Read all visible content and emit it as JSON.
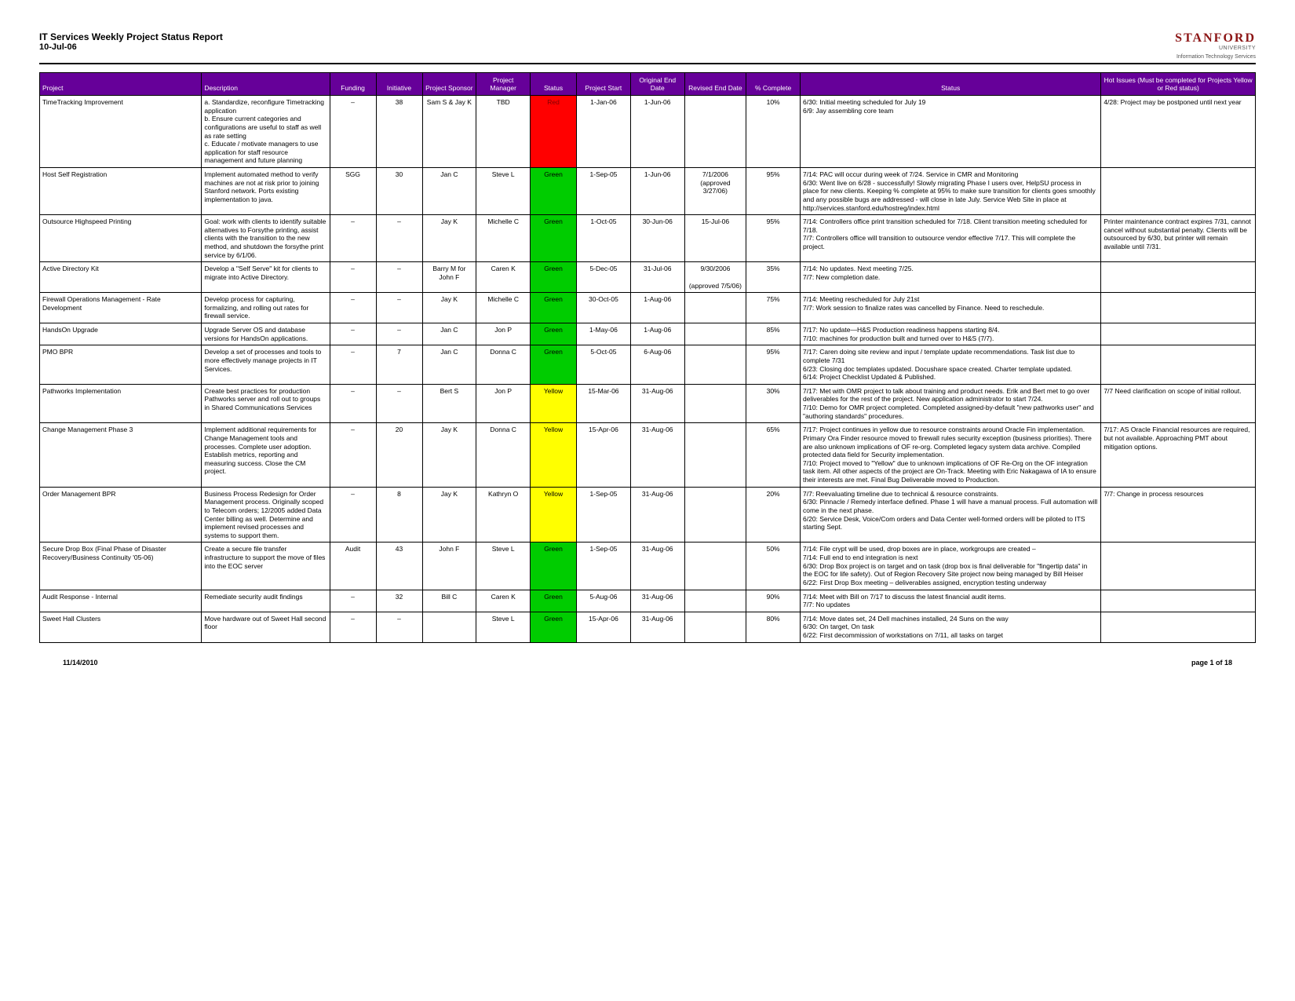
{
  "header": {
    "title": "IT Services Weekly Project Status Report",
    "date": "10-Jul-06",
    "logo": "STANFORD",
    "logo_sub": "UNIVERSITY",
    "logo_sub2": "Information Technology Services"
  },
  "status_colors": {
    "Red": "#ff0000",
    "Green": "#00cc00",
    "Yellow": "#ffff00"
  },
  "columns": [
    "Project",
    "Description",
    "Funding",
    "Initiative",
    "Project Sponsor",
    "Project Manager",
    "Status",
    "Project Start",
    "Original End Date",
    "Revised End Date",
    "% Complete",
    "Status",
    "Hot Issues (Must be completed for Projects Yellow or Red status)"
  ],
  "rows": [
    {
      "project": "TimeTracking Improvement",
      "description": "a. Standardize, reconfigure Timetracking application\nb. Ensure current categories and configurations are useful to staff as well as rate setting\nc. Educate / motivate managers to use application for staff resource management and future planning",
      "funding": "–",
      "initiative": "38",
      "sponsor": "Sam S & Jay K",
      "manager": "TBD",
      "status": "Red",
      "start": "1-Jan-06",
      "orig_end": "1-Jun-06",
      "rev_end": "",
      "pct": "10%",
      "status_text": "6/30: Initial meeting scheduled for July 19\n6/9: Jay assembling core team",
      "hot": "4/28: Project may be postponed until next year"
    },
    {
      "project": "Host Self Registration",
      "description": "Implement automated method to verify machines are not at risk prior to joining Stanford network. Ports existing implementation to java.",
      "funding": "SGG",
      "initiative": "30",
      "sponsor": "Jan C",
      "manager": "Steve L",
      "status": "Green",
      "start": "1-Sep-05",
      "orig_end": "1-Jun-06",
      "rev_end": "7/1/2006\n(approved 3/27/06)",
      "pct": "95%",
      "status_text": "7/14: PAC will occur during week of 7/24. Service in CMR and Monitoring\n6/30: Went live on 6/28 - successfully! Slowly migrating Phase I users over, HelpSU process in place for new clients. Keeping % complete at 95% to make sure transition for clients goes smoothly and any possible bugs are addressed - will close in late July. Service Web Site in place at http://services.stanford.edu/hostreg/index.html",
      "hot": ""
    },
    {
      "project": "Outsource Highspeed Printing",
      "description": "Goal: work with clients to identify suitable alternatives to Forsythe printing, assist clients with the transition to the new method, and shutdown the forsythe print service by 6/1/06.",
      "funding": "–",
      "initiative": "–",
      "sponsor": "Jay K",
      "manager": "Michelle C",
      "status": "Green",
      "start": "1-Oct-05",
      "orig_end": "30-Jun-06",
      "rev_end": "15-Jul-06",
      "pct": "95%",
      "status_text": "7/14: Controllers office print transition scheduled for 7/18. Client transition meeting scheduled for 7/18.\n7/7: Controllers office will transition to outsource vendor effective 7/17. This will complete the project.",
      "hot": "Printer maintenance contract expires 7/31, cannot cancel without substantial penalty. Clients will be outsourced by 6/30, but printer will remain available until 7/31."
    },
    {
      "project": "Active Directory Kit",
      "description": "Develop a \"Self Serve\" kit for clients to migrate into Active Directory.",
      "funding": "–",
      "initiative": "–",
      "sponsor": "Barry M for John F",
      "manager": "Caren K",
      "status": "Green",
      "start": "5-Dec-05",
      "orig_end": "31-Jul-06",
      "rev_end": "9/30/2006\n\n(approved 7/5/06)",
      "pct": "35%",
      "status_text": "7/14: No updates. Next meeting 7/25.\n7/7: New completion date.",
      "hot": ""
    },
    {
      "project": "Firewall Operations Management - Rate Development",
      "description": "Develop process for capturing, formalizing, and rolling out rates for firewall service.",
      "funding": "–",
      "initiative": "–",
      "sponsor": "Jay K",
      "manager": "Michelle C",
      "status": "Green",
      "start": "30-Oct-05",
      "orig_end": "1-Aug-06",
      "rev_end": "",
      "pct": "75%",
      "status_text": "7/14: Meeting rescheduled for July 21st\n7/7: Work session to finalize rates was cancelled by Finance. Need to reschedule.",
      "hot": ""
    },
    {
      "project": "HandsOn Upgrade",
      "description": "Upgrade Server OS and database versions for HandsOn applications.",
      "funding": "–",
      "initiative": "–",
      "sponsor": "Jan C",
      "manager": "Jon P",
      "status": "Green",
      "start": "1-May-06",
      "orig_end": "1-Aug-06",
      "rev_end": "",
      "pct": "85%",
      "status_text": "7/17: No update—H&S Production readiness happens starting 8/4.\n7/10: machines for production built and turned over to H&S (7/7).",
      "hot": ""
    },
    {
      "project": "PMO BPR",
      "description": "Develop a set of processes and tools to more effectively manage projects in IT Services.",
      "funding": "–",
      "initiative": "7",
      "sponsor": "Jan C",
      "manager": "Donna C",
      "status": "Green",
      "start": "5-Oct-05",
      "orig_end": "6-Aug-06",
      "rev_end": "",
      "pct": "95%",
      "status_text": "7/17: Caren doing site review and input / template update recommendations. Task list due to complete 7/31\n6/23: Closing doc templates updated. Docushare space created. Charter template updated.\n6/14: Project Checklist Updated & Published.",
      "hot": ""
    },
    {
      "project": "Pathworks Implementation",
      "description": "Create best practices for production Pathworks server and roll out to groups in Shared Communications Services",
      "funding": "–",
      "initiative": "–",
      "sponsor": "Bert S",
      "manager": "Jon P",
      "status": "Yellow",
      "start": "15-Mar-06",
      "orig_end": "31-Aug-06",
      "rev_end": "",
      "pct": "30%",
      "status_text": "7/17: Met with OMR project to talk about training and product needs. Erik and Bert met to go over deliverables for the rest of the project. New application administrator to start 7/24.\n7/10: Demo for OMR project completed. Completed assigned-by-default \"new pathworks user\" and \"authoring standards\" procedures.",
      "hot": "7/7 Need clarification on scope of initial rollout."
    },
    {
      "project": "Change Management Phase 3",
      "description": "Implement additional requirements for Change Management tools and processes. Complete user adoption. Establish metrics, reporting and measuring success. Close the CM project.",
      "funding": "–",
      "initiative": "20",
      "sponsor": "Jay K",
      "manager": "Donna C",
      "status": "Yellow",
      "start": "15-Apr-06",
      "orig_end": "31-Aug-06",
      "rev_end": "",
      "pct": "65%",
      "status_text": "7/17: Project continues in yellow due to resource constraints around Oracle Fin implementation. Primary Ora Finder resource moved to firewall rules security exception (business priorities). There are also unknown implications of OF re-org. Completed legacy system data archive. Compiled protected data field for Security implementation.\n7/10: Project moved to \"Yellow\" due to unknown implications of OF Re-Org on the OF integration task item. All other aspects of the project are On-Track. Meeting with Eric Nakagawa of IA to ensure their interests are met. Final Bug Deliverable moved to Production.",
      "hot": "7/17: AS Oracle Financial resources are required, but not available. Approaching PMT about mitigation options."
    },
    {
      "project": "Order Management BPR",
      "description": "Business Process Redesign for Order Management process. Originally scoped to Telecom orders; 12/2005 added Data Center billing as well. Determine and implement revised processes and systems to support them.",
      "funding": "–",
      "initiative": "8",
      "sponsor": "Jay K",
      "manager": "Kathryn O",
      "status": "Yellow",
      "start": "1-Sep-05",
      "orig_end": "31-Aug-06",
      "rev_end": "",
      "pct": "20%",
      "status_text": "7/7: Reevaluating timeline due to technical & resource constraints.\n6/30: Pinnacle / Remedy interface defined. Phase 1 will have a manual process. Full automation will come in the next phase.\n6/20: Service Desk, Voice/Com orders and Data Center well-formed orders will be piloted to ITS starting Sept.",
      "hot": "7/7: Change in process resources"
    },
    {
      "project": "Secure Drop Box (Final Phase of Disaster Recovery/Business Continuity '05-06)",
      "description": "Create a secure file transfer infrastructure to support the move of files into the EOC server",
      "funding": "Audit",
      "initiative": "43",
      "sponsor": "John F",
      "manager": "Steve L",
      "status": "Green",
      "start": "1-Sep-05",
      "orig_end": "31-Aug-06",
      "rev_end": "",
      "pct": "50%",
      "status_text": "7/14: File crypt will be used, drop boxes are in place, workgroups are created –\n7/14: Full end to end integration is next\n6/30: Drop Box project is on target and on task (drop box is final deliverable for \"fingertip data\" in the EOC for life safety). Out of Region Recovery Site project now being managed by Bill Heiser\n6/22: First Drop Box meeting – deliverables assigned, encryption testing underway",
      "hot": ""
    },
    {
      "project": "Audit Response - Internal",
      "description": "Remediate security audit findings",
      "funding": "–",
      "initiative": "32",
      "sponsor": "Bill C",
      "manager": "Caren K",
      "status": "Green",
      "start": "5-Aug-06",
      "orig_end": "31-Aug-06",
      "rev_end": "",
      "pct": "90%",
      "status_text": "7/14: Meet with Bill on 7/17 to discuss the latest financial audit items.\n7/7: No updates",
      "hot": ""
    },
    {
      "project": "Sweet Hall Clusters",
      "description": "Move hardware out of Sweet Hall second floor",
      "funding": "–",
      "initiative": "–",
      "sponsor": "",
      "manager": "Steve L",
      "status": "Green",
      "start": "15-Apr-06",
      "orig_end": "31-Aug-06",
      "rev_end": "",
      "pct": "80%",
      "status_text": "7/14: Move dates set, 24 Dell machines installed, 24 Suns on the way\n6/30: On target, On task\n6/22: First decommission of workstations on 7/11, all tasks on target",
      "hot": ""
    }
  ],
  "footer": {
    "date": "11/14/2010",
    "page": "page 1 of 18"
  }
}
